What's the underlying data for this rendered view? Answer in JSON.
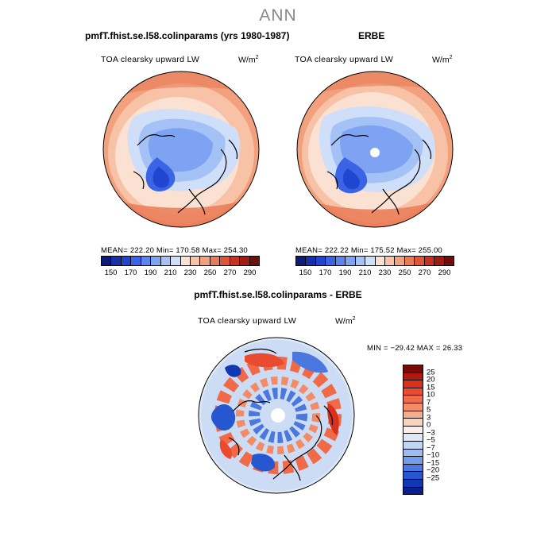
{
  "page_title": "ANN",
  "panels": {
    "model": {
      "title": "pmfT.fhist.se.l58.colinparams (yrs 1980-1987)",
      "variable": "TOA clearsky upward LW",
      "units_base": "W/m",
      "units_exp": "2",
      "stats": "MEAN= 222.20   Min= 170.58   Max= 254.30"
    },
    "obs": {
      "title": "ERBE",
      "variable": "TOA clearsky upward LW",
      "units_base": "W/m",
      "units_exp": "2",
      "stats": "MEAN= 222.22   Min= 175.52   Max= 255.00"
    },
    "diff": {
      "title": "pmfT.fhist.se.l58.colinparams - ERBE",
      "variable": "TOA clearsky upward LW",
      "units_base": "W/m",
      "units_exp": "2",
      "stats": "MIN = −29.42  MAX =  26.33"
    }
  },
  "chart_data": [
    {
      "type": "heatmap",
      "projection": "north-polar-stereographic",
      "title": "pmfT.fhist.se.l58.colinparams (yrs 1980-1987)",
      "variable": "TOA clearsky upward LW",
      "units": "W/m^2",
      "mean": 222.2,
      "min": 170.58,
      "max": 254.3,
      "colorbar_levels": [
        150,
        160,
        170,
        180,
        190,
        200,
        210,
        220,
        230,
        240,
        250,
        260,
        270,
        280,
        290
      ],
      "colorbar_labels": [
        "150",
        "170",
        "190",
        "210",
        "230",
        "250",
        "270",
        "290"
      ],
      "colorbar_colors": [
        "#0c1b7a",
        "#1530a8",
        "#2045d0",
        "#3a63e6",
        "#5a84ee",
        "#7ea3f3",
        "#a5c2f7",
        "#cfdef9",
        "#fbe1d2",
        "#f7c2a6",
        "#f2a07d",
        "#ea7b57",
        "#df5537",
        "#c8321f",
        "#a11d12",
        "#6e0f0a"
      ]
    },
    {
      "type": "heatmap",
      "projection": "north-polar-stereographic",
      "title": "ERBE",
      "variable": "TOA clearsky upward LW",
      "units": "W/m^2",
      "mean": 222.22,
      "min": 175.52,
      "max": 255.0,
      "colorbar_levels": [
        150,
        160,
        170,
        180,
        190,
        200,
        210,
        220,
        230,
        240,
        250,
        260,
        270,
        280,
        290
      ],
      "colorbar_labels": [
        "150",
        "170",
        "190",
        "210",
        "230",
        "250",
        "270",
        "290"
      ],
      "colorbar_colors": [
        "#0c1b7a",
        "#1530a8",
        "#2045d0",
        "#3a63e6",
        "#5a84ee",
        "#7ea3f3",
        "#a5c2f7",
        "#cfdef9",
        "#fbe1d2",
        "#f7c2a6",
        "#f2a07d",
        "#ea7b57",
        "#df5537",
        "#c8321f",
        "#a11d12",
        "#6e0f0a"
      ]
    },
    {
      "type": "heatmap",
      "projection": "north-polar-stereographic",
      "title": "pmfT.fhist.se.l58.colinparams - ERBE",
      "variable": "TOA clearsky upward LW",
      "units": "W/m^2",
      "min": -29.42,
      "max": 26.33,
      "colorbar_labels": [
        "25",
        "20",
        "15",
        "10",
        "7",
        "5",
        "3",
        "0",
        "−3",
        "−5",
        "−7",
        "−10",
        "−15",
        "−20",
        "−25"
      ],
      "colorbar_colors": [
        "#7a0a05",
        "#b01a0e",
        "#d8301c",
        "#ea4a2e",
        "#f06a48",
        "#f48b67",
        "#f6ad8c",
        "#f9d3bd",
        "#fbeee6",
        "#dfe9f6",
        "#c2d6f3",
        "#9dbcef",
        "#759ce8",
        "#4b78df",
        "#2756d1",
        "#1237b4",
        "#0a2090"
      ]
    }
  ]
}
